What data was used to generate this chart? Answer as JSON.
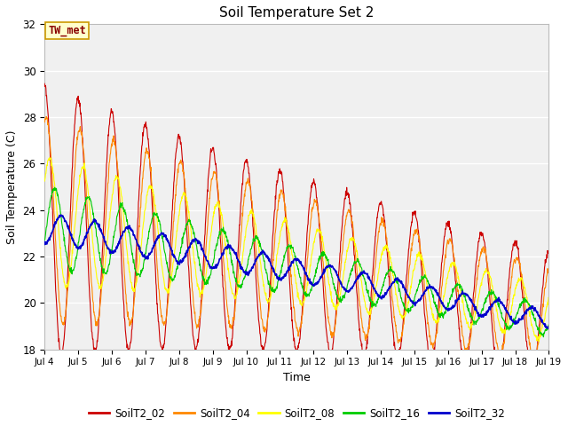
{
  "title": "Soil Temperature Set 2",
  "xlabel": "Time",
  "ylabel": "Soil Temperature (C)",
  "ylim": [
    18,
    32
  ],
  "yticks": [
    18,
    20,
    22,
    24,
    26,
    28,
    30,
    32
  ],
  "x_tick_labels": [
    "Jul 4",
    "Jul 5",
    "Jul 6",
    "Jul 7",
    "Jul 8",
    "Jul 9",
    "Jul 10",
    "Jul 11",
    "Jul 12",
    "Jul 13",
    "Jul 14",
    "Jul 15",
    "Jul 16",
    "Jul 17",
    "Jul 18",
    "Jul 19"
  ],
  "annotation_text": "TW_met",
  "annotation_color": "#880000",
  "annotation_bg": "#ffffcc",
  "annotation_border": "#cc9900",
  "series_colors": {
    "SoilT2_02": "#cc0000",
    "SoilT2_04": "#ff8800",
    "SoilT2_08": "#ffff00",
    "SoilT2_16": "#00cc00",
    "SoilT2_32": "#0000cc"
  },
  "fig_bg": "#ffffff",
  "plot_bg": "#f0f0f0"
}
